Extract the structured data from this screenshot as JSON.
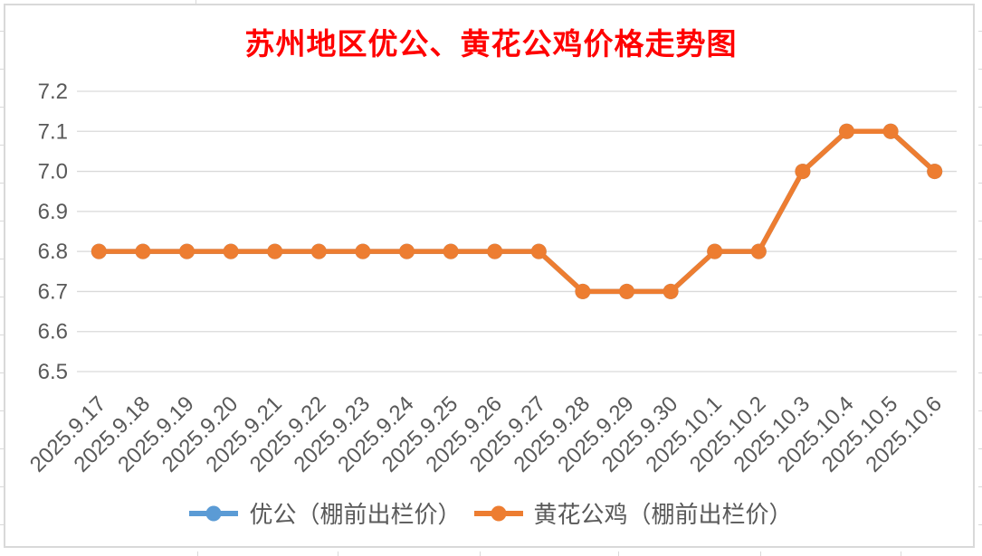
{
  "chart_data": {
    "type": "line",
    "title": "苏州地区优公、黄花公鸡价格走势图",
    "title_color": "#FF0000",
    "categories": [
      "2025.9.17",
      "2025.9.18",
      "2025.9.19",
      "2025.9.20",
      "2025.9.21",
      "2025.9.22",
      "2025.9.23",
      "2025.9.24",
      "2025.9.25",
      "2025.9.26",
      "2025.9.27",
      "2025.9.28",
      "2025.9.29",
      "2025.9.30",
      "2025.10.1",
      "2025.10.2",
      "2025.10.3",
      "2025.10.4",
      "2025.10.5",
      "2025.10.6"
    ],
    "series": [
      {
        "name": "优公（棚前出栏价）",
        "color": "#5B9BD5",
        "marker": "circle",
        "values": [
          6.8,
          6.8,
          6.8,
          6.8,
          6.8,
          6.8,
          6.8,
          6.8,
          6.8,
          6.8,
          6.8,
          6.7,
          6.7,
          6.7,
          6.8,
          6.8,
          7.0,
          7.1,
          7.1,
          7.0
        ],
        "note": "line fully hidden beneath the orange series (identical values)"
      },
      {
        "name": "黄花公鸡（棚前出栏价）",
        "color": "#ED7D31",
        "marker": "circle",
        "values": [
          6.8,
          6.8,
          6.8,
          6.8,
          6.8,
          6.8,
          6.8,
          6.8,
          6.8,
          6.8,
          6.8,
          6.7,
          6.7,
          6.7,
          6.8,
          6.8,
          7.0,
          7.1,
          7.1,
          7.0
        ]
      }
    ],
    "ylim": [
      6.5,
      7.2
    ],
    "yticks": [
      7.2,
      7.1,
      7.0,
      6.9,
      6.8,
      6.7,
      6.6,
      6.5
    ],
    "ytick_labels": [
      "7.2",
      "7.1",
      "7.0",
      "6.9",
      "6.8",
      "6.7",
      "6.6",
      "6.5"
    ],
    "xlabel": "",
    "ylabel": "",
    "grid": true,
    "grid_color": "#D9D9D9",
    "axis_color": "#595959",
    "legend_position": "bottom"
  }
}
